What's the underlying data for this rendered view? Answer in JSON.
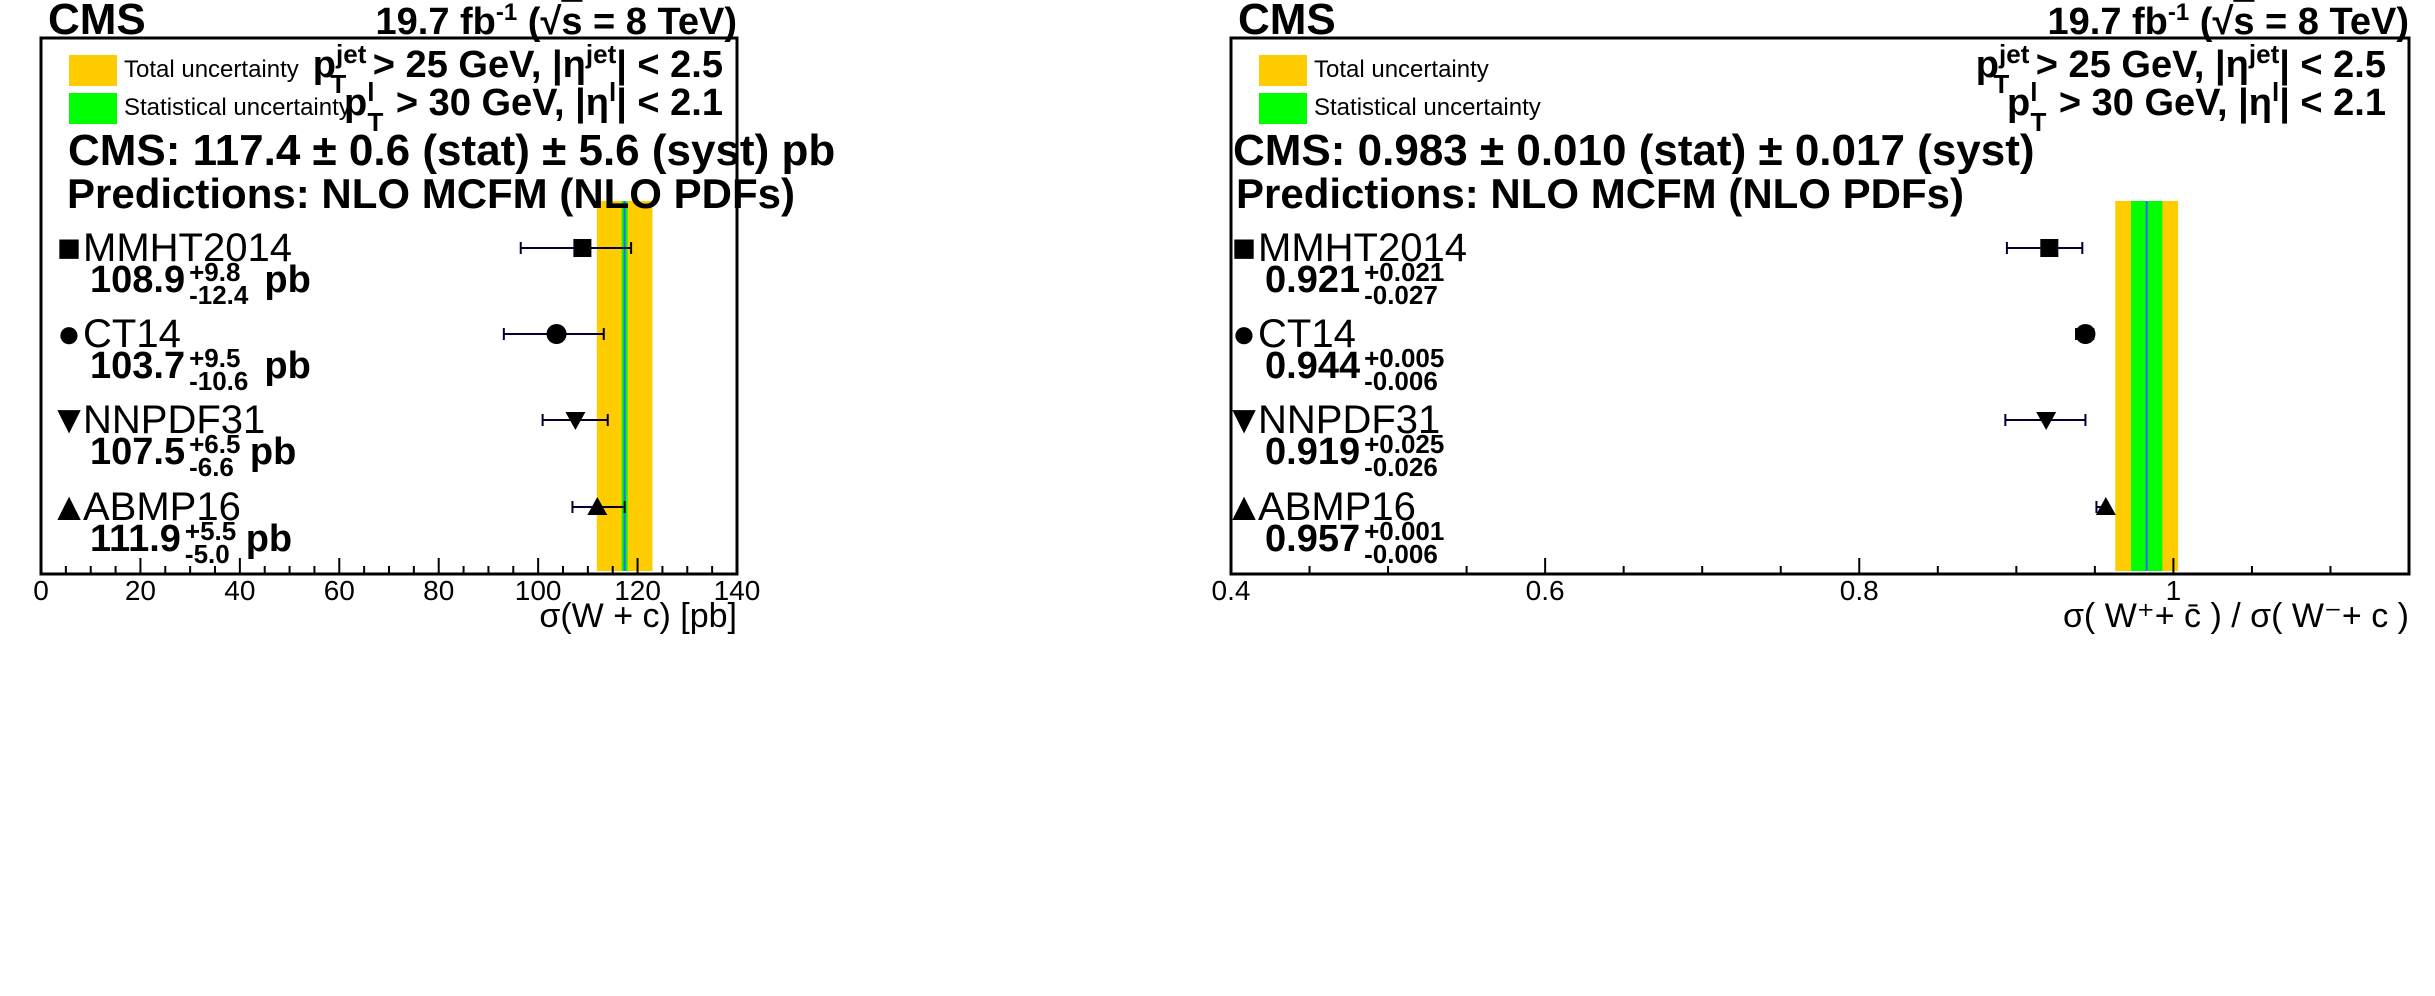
{
  "colors": {
    "total_band": "#FFCC00",
    "stat_band": "#00FF00",
    "center_line": "#3366FF",
    "marker": "#000000",
    "error_bar": "#000033"
  },
  "chart_data": [
    {
      "type": "scatter",
      "experiment": "CMS",
      "lumi": "19.7 fb",
      "lumi_exp": "-1",
      "energy_pre": " (",
      "energy_sqrt": "s",
      "energy_post": " = 8 TeV)",
      "legend": {
        "total": "Total uncertainty",
        "stat": "Statistical uncertainty"
      },
      "cuts": {
        "jet_p": "p",
        "jet_p_sup": "jet",
        "jet_p_sub": "T",
        "jet_mid": " > 25 GeV, |η",
        "jet_eta_sup": "jet",
        "jet_end": "| < 2.5",
        "lep_p": "p",
        "lep_p_sup": "l",
        "lep_p_sub": "T",
        "lep_mid": " > 30 GeV, |η",
        "lep_eta_sup": "l",
        "lep_end": "| < 2.1"
      },
      "measurement": {
        "text": "CMS: 117.4 ± 0.6  (stat) ± 5.6  (syst) pb",
        "value": 117.4,
        "stat": 0.6,
        "syst": 5.6,
        "total_low": 111.8,
        "total_high": 123.0
      },
      "predictions_title": "Predictions: NLO MCFM (NLO PDFs)",
      "predictions": [
        {
          "name": "MMHT2014",
          "symbol": "■",
          "marker": "square",
          "value": 108.9,
          "value_text": "108.9",
          "err_up": 9.8,
          "err_down": 12.4,
          "err_up_text": "+9.8",
          "err_down_text": "-12.4",
          "unit": "pb"
        },
        {
          "name": "CT14",
          "symbol": "●",
          "marker": "circle",
          "value": 103.7,
          "value_text": "103.7",
          "err_up": 9.5,
          "err_down": 10.6,
          "err_up_text": "+9.5",
          "err_down_text": "-10.6",
          "unit": "pb"
        },
        {
          "name": "NNPDF31",
          "symbol": "▼",
          "marker": "triangle-down",
          "value": 107.5,
          "value_text": "107.5",
          "err_up": 6.5,
          "err_down": 6.6,
          "err_up_text": "+6.5",
          "err_down_text": "-6.6",
          "unit": "pb"
        },
        {
          "name": "ABMP16",
          "symbol": "▲",
          "marker": "triangle-up",
          "value": 111.9,
          "value_text": "111.9",
          "err_up": 5.5,
          "err_down": 5.0,
          "err_up_text": "+5.5",
          "err_down_text": "-5.0",
          "unit": "pb"
        }
      ],
      "xlim": [
        0,
        140
      ],
      "major_ticks": [
        0,
        20,
        40,
        60,
        80,
        100,
        120,
        140
      ],
      "tick_labels": [
        "0",
        "20",
        "40",
        "60",
        "80",
        "100",
        "120",
        "140"
      ],
      "minor_step": 5,
      "xlabel": "σ(W + c) [pb]"
    },
    {
      "type": "scatter",
      "experiment": "CMS",
      "lumi": "19.7 fb",
      "lumi_exp": "-1",
      "energy_pre": " (",
      "energy_sqrt": "s",
      "energy_post": " = 8 TeV)",
      "legend": {
        "total": "Total uncertainty",
        "stat": "Statistical uncertainty"
      },
      "cuts": {
        "jet_p": "p",
        "jet_p_sup": "jet",
        "jet_p_sub": "T",
        "jet_mid": " > 25 GeV, |η",
        "jet_eta_sup": "jet",
        "jet_end": "| < 2.5",
        "lep_p": "p",
        "lep_p_sup": "l",
        "lep_p_sub": "T",
        "lep_mid": " > 30 GeV, |η",
        "lep_eta_sup": "l",
        "lep_end": "| < 2.1"
      },
      "measurement": {
        "text": "CMS: 0.983 ± 0.010 (stat) ± 0.017 (syst)",
        "value": 0.983,
        "stat": 0.01,
        "syst": 0.017,
        "total_low": 0.963,
        "total_high": 1.003
      },
      "predictions_title": "Predictions: NLO MCFM (NLO PDFs)",
      "predictions": [
        {
          "name": "MMHT2014",
          "symbol": "■",
          "marker": "square",
          "value": 0.921,
          "value_text": "0.921",
          "err_up": 0.021,
          "err_down": 0.027,
          "err_up_text": "+0.021",
          "err_down_text": "-0.027",
          "unit": ""
        },
        {
          "name": "CT14",
          "symbol": "●",
          "marker": "circle",
          "value": 0.944,
          "value_text": "0.944",
          "err_up": 0.005,
          "err_down": 0.006,
          "err_up_text": "+0.005",
          "err_down_text": "-0.006",
          "unit": ""
        },
        {
          "name": "NNPDF31",
          "symbol": "▼",
          "marker": "triangle-down",
          "value": 0.919,
          "value_text": "0.919",
          "err_up": 0.025,
          "err_down": 0.026,
          "err_up_text": "+0.025",
          "err_down_text": "-0.026",
          "unit": ""
        },
        {
          "name": "ABMP16",
          "symbol": "▲",
          "marker": "triangle-up",
          "value": 0.957,
          "value_text": "0.957",
          "err_up": 0.001,
          "err_down": 0.006,
          "err_up_text": "+0.001",
          "err_down_text": "-0.006",
          "unit": ""
        }
      ],
      "xlim": [
        0.4,
        1.15
      ],
      "major_ticks": [
        0.4,
        0.6,
        0.8,
        1.0
      ],
      "tick_labels": [
        "0.4",
        "0.6",
        "0.8",
        "1"
      ],
      "minor_step": 0.05,
      "xlabel": "σ( W⁺+ c̄ ) / σ( W⁻+ c )"
    }
  ]
}
